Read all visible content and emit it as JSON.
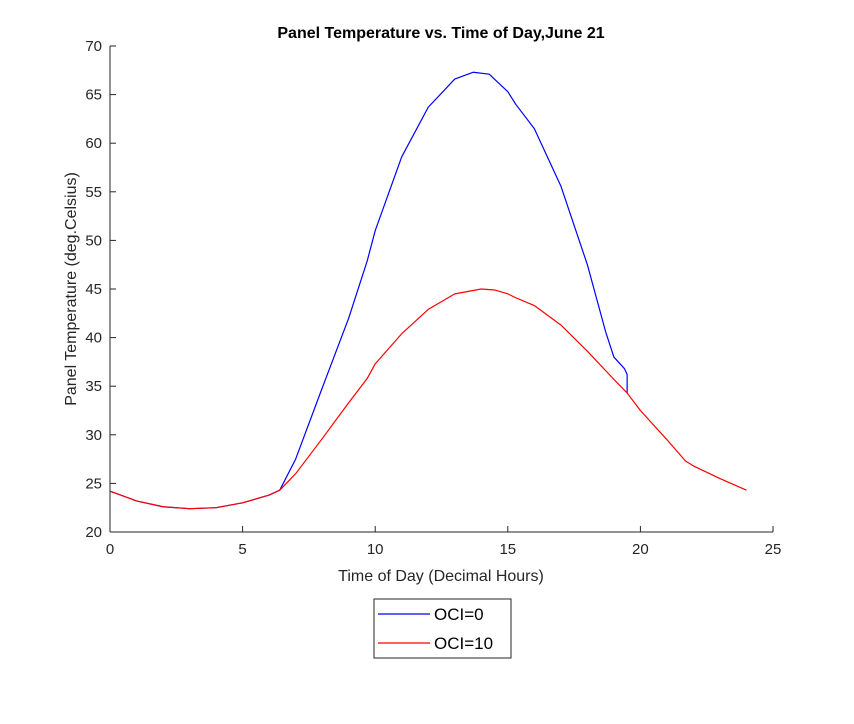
{
  "chart_data": {
    "type": "line",
    "title": "Panel Temperature vs. Time of Day,June 21",
    "xlabel": "Time of Day (Decimal Hours)",
    "ylabel": "Panel Temperature (deg.Celsius)",
    "xlim": [
      0,
      25
    ],
    "ylim": [
      20,
      70
    ],
    "xticks": [
      "0",
      "5",
      "10",
      "15",
      "20",
      "25"
    ],
    "yticks": [
      "20",
      "25",
      "30",
      "35",
      "40",
      "45",
      "50",
      "55",
      "60",
      "65",
      "70"
    ],
    "grid": false,
    "legend_position": "below-plot",
    "series": [
      {
        "name": "OCI=0",
        "color": "#0000ff",
        "x": [
          0,
          1,
          2,
          3,
          4,
          5,
          6,
          6.4,
          7,
          8,
          9,
          9.7,
          10,
          11,
          12,
          13,
          13.7,
          14.3,
          15,
          15.3,
          16,
          17,
          18,
          18.7,
          19,
          19.4,
          19.5,
          19.5
        ],
        "y": [
          24.2,
          23.2,
          22.6,
          22.4,
          22.5,
          23.0,
          23.8,
          24.3,
          27.5,
          34.8,
          42.0,
          47.9,
          51.0,
          58.6,
          63.7,
          66.6,
          67.3,
          67.1,
          65.3,
          64.0,
          61.5,
          55.6,
          47.5,
          40.5,
          38.0,
          36.8,
          36.2,
          34.3
        ]
      },
      {
        "name": "OCI=10",
        "color": "#ff0000",
        "x": [
          0,
          1,
          2,
          3,
          4,
          5,
          6,
          6.4,
          7,
          8,
          9,
          9.7,
          10,
          11,
          12,
          13,
          14,
          14.5,
          15,
          15.3,
          16,
          17,
          18,
          19,
          19.5,
          20,
          21,
          21.7,
          22,
          23,
          24
        ],
        "y": [
          24.2,
          23.2,
          22.6,
          22.4,
          22.5,
          23.0,
          23.8,
          24.3,
          26.0,
          29.6,
          33.3,
          35.8,
          37.3,
          40.4,
          42.9,
          44.5,
          45.0,
          44.9,
          44.5,
          44.1,
          43.3,
          41.3,
          38.6,
          35.7,
          34.3,
          32.5,
          29.5,
          27.3,
          26.8,
          25.5,
          24.3
        ]
      }
    ]
  }
}
